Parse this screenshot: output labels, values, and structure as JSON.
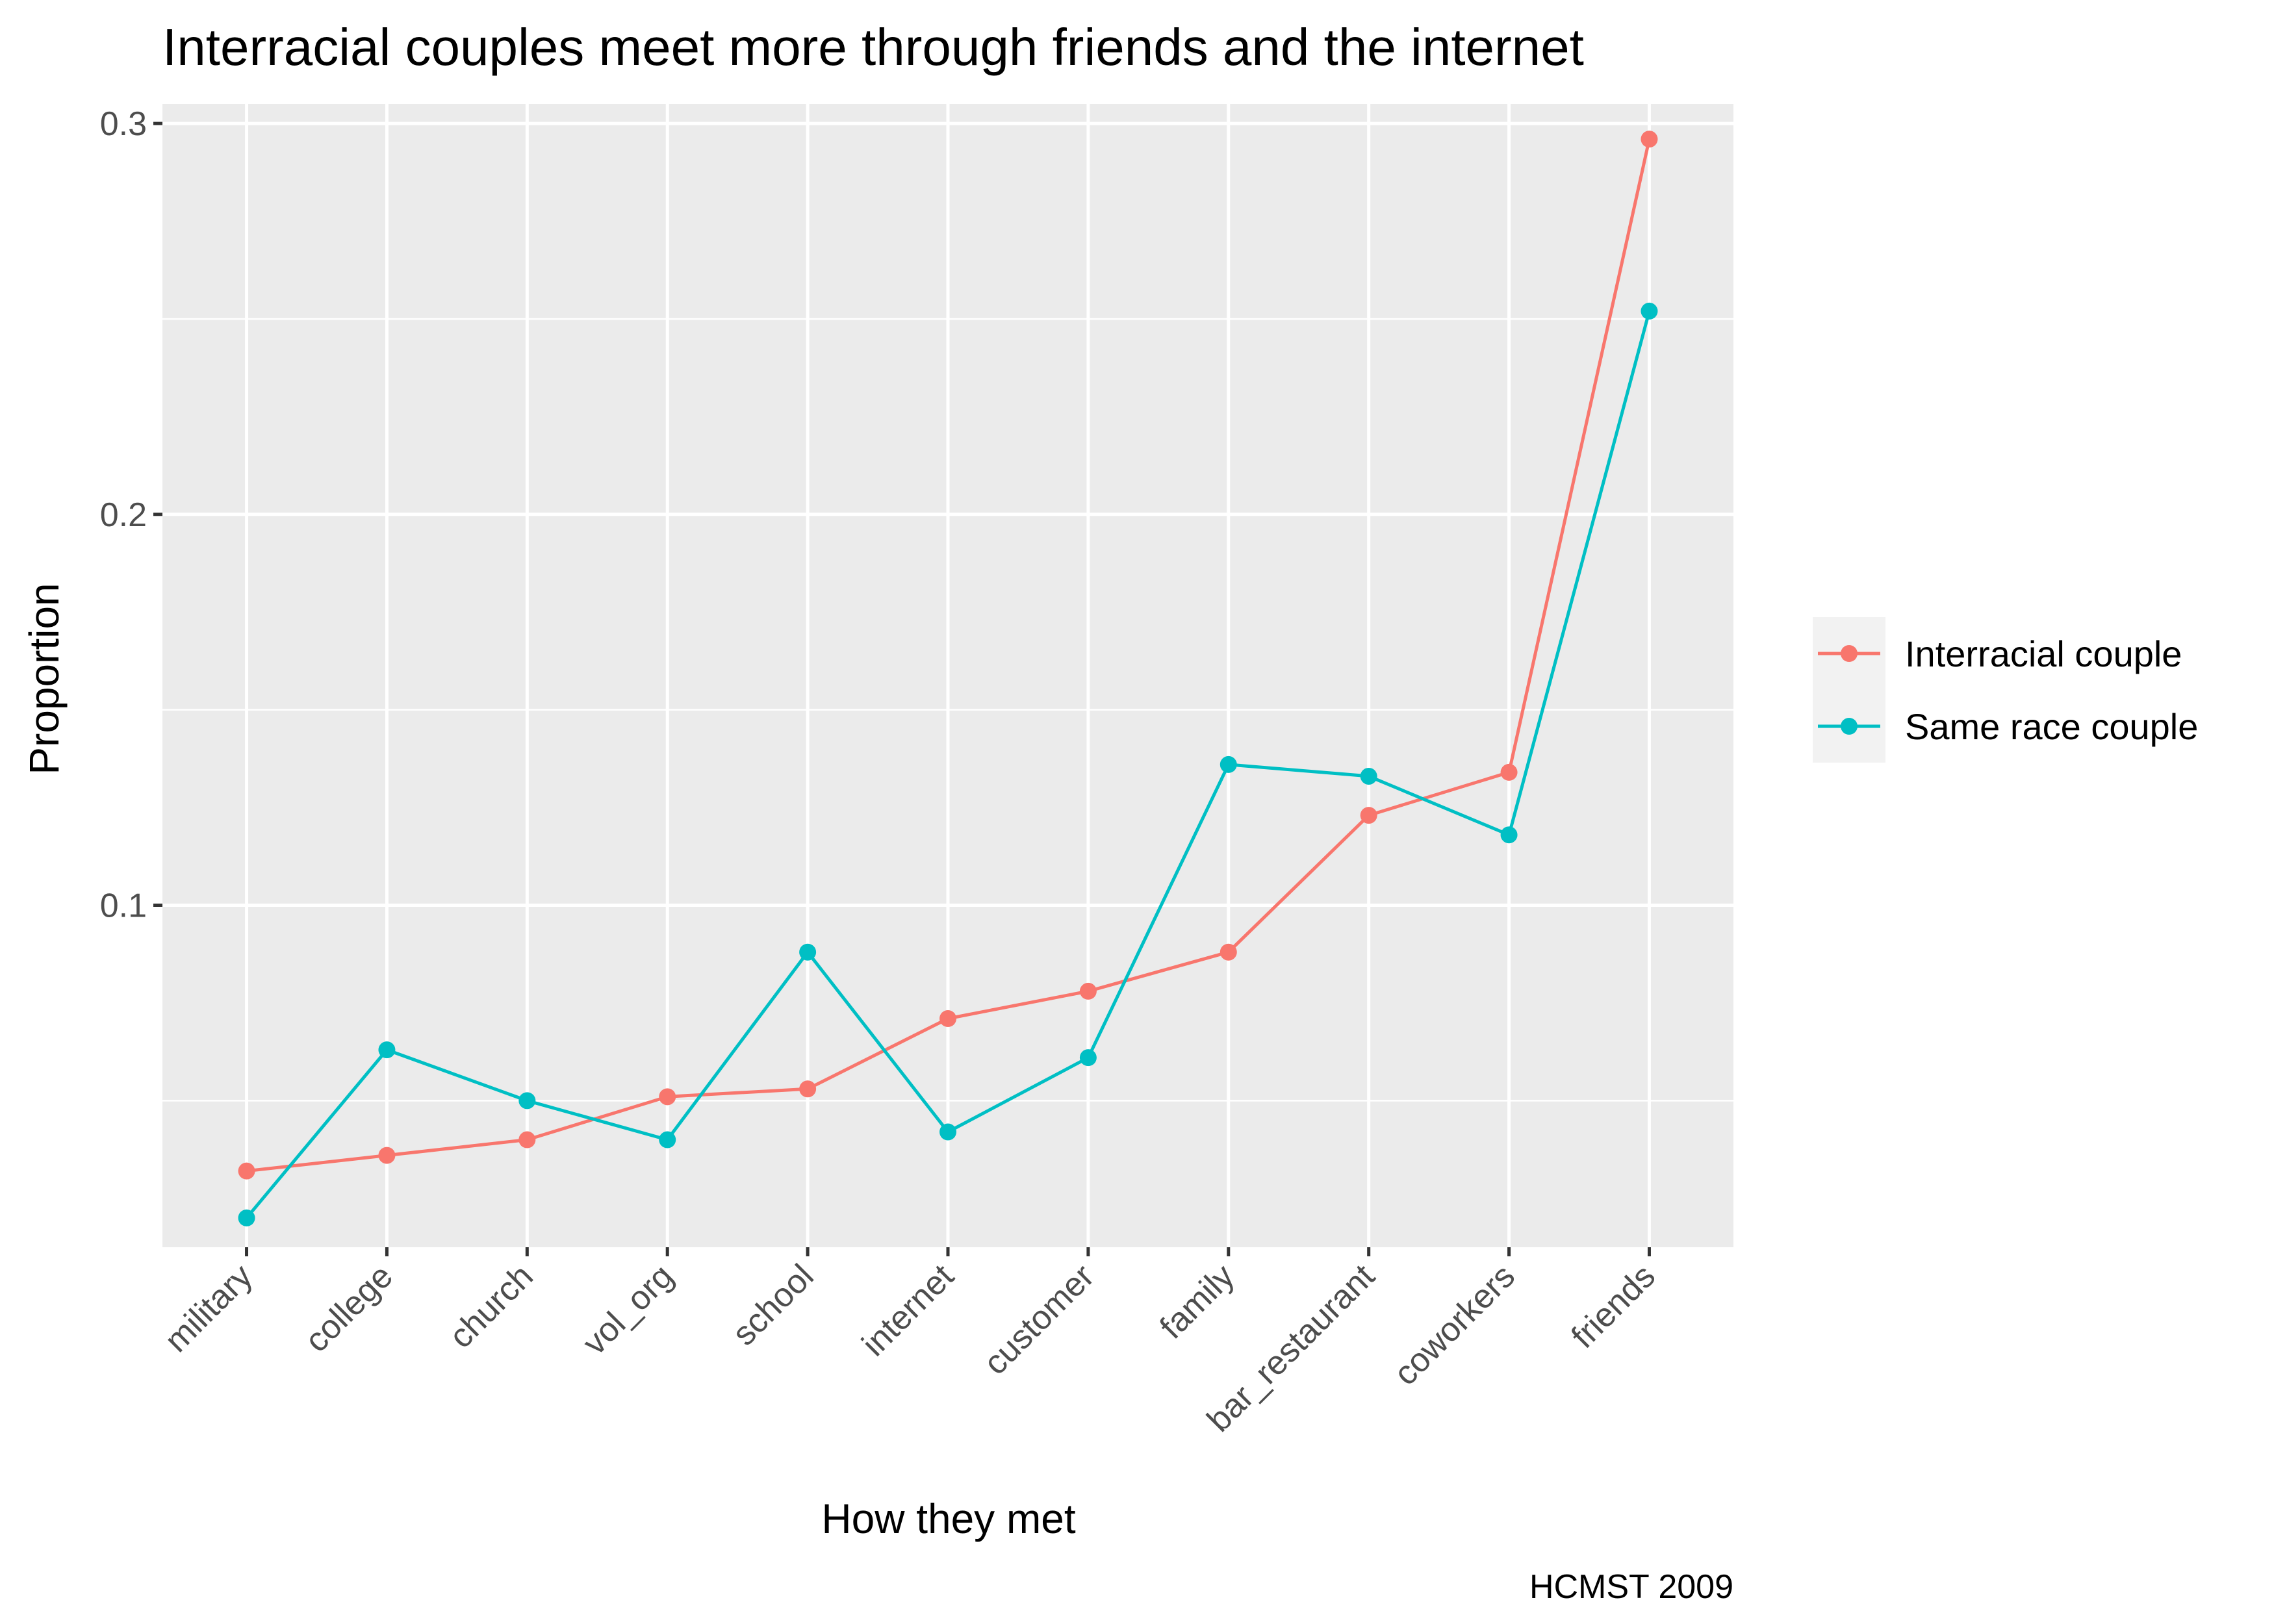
{
  "chart_data": {
    "type": "line",
    "title": "Interracial couples meet more through friends and the internet",
    "xlabel": "How they met",
    "ylabel": "Proportion",
    "caption": "HCMST 2009",
    "categories": [
      "military",
      "college",
      "church",
      "vol_org",
      "school",
      "internet",
      "customer",
      "family",
      "bar_restaurant",
      "coworkers",
      "friends"
    ],
    "ylim": [
      0.0125,
      0.305
    ],
    "yticks": [
      0.1,
      0.2,
      0.3
    ],
    "ytick_labels": [
      "0.1",
      "0.2",
      "0.3"
    ],
    "grid": true,
    "legend_position": "right",
    "series": [
      {
        "name": "Interracial couple",
        "color": "#F8766D",
        "values": [
          0.032,
          0.036,
          0.04,
          0.051,
          0.053,
          0.071,
          0.078,
          0.088,
          0.123,
          0.134,
          0.296
        ]
      },
      {
        "name": "Same race couple",
        "color": "#00BFC4",
        "values": [
          0.02,
          0.063,
          0.05,
          0.04,
          0.088,
          0.042,
          0.061,
          0.136,
          0.133,
          0.118,
          0.252
        ]
      }
    ]
  }
}
